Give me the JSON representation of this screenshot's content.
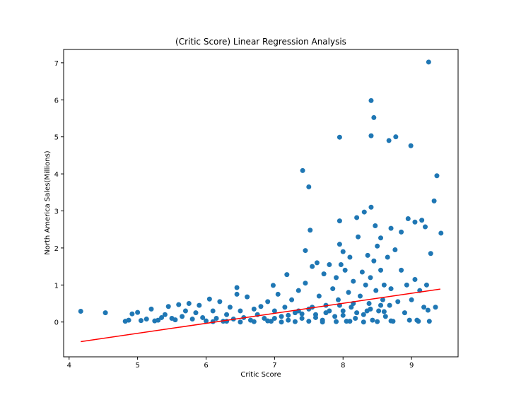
{
  "chart_data": {
    "type": "scatter",
    "title": "(Critic Score) Linear Regression Analysis",
    "x_label": "Critic Score",
    "y_label": "North America Sales(Millions)",
    "color": "#1f77b4",
    "x": [
      4.17,
      4.53,
      9.25,
      8.41,
      8.45,
      8.41,
      7.95,
      8.77,
      8.67,
      8.99,
      7.41,
      7.5,
      9.37,
      8.41,
      9.33,
      8.31,
      7.95,
      8.2,
      7.52,
      9.43,
      8.95,
      9.05,
      9.15,
      9.2,
      9.28,
      8.85,
      8.7,
      8.55,
      8.47,
      7.45,
      7.18,
      6.98,
      6.45,
      7.95,
      8.0,
      4.82,
      4.87,
      4.92,
      5.0,
      5.05,
      5.13,
      5.2,
      5.25,
      5.3,
      5.35,
      5.4,
      5.45,
      5.5,
      5.55,
      5.6,
      5.65,
      5.7,
      5.75,
      5.8,
      5.85,
      5.9,
      5.95,
      6.0,
      6.05,
      6.1,
      6.15,
      6.2,
      6.25,
      6.3,
      6.35,
      6.4,
      6.45,
      6.5,
      6.55,
      6.6,
      6.65,
      6.7,
      6.75,
      6.8,
      6.85,
      6.9,
      6.95,
      7.0,
      7.05,
      7.1,
      7.15,
      7.2,
      7.25,
      7.3,
      7.35,
      7.4,
      7.45,
      7.5,
      7.55,
      7.6,
      7.62,
      7.65,
      7.7,
      7.72,
      7.75,
      7.8,
      7.85,
      7.88,
      7.9,
      7.93,
      7.97,
      8.0,
      8.03,
      8.05,
      8.08,
      8.1,
      8.12,
      8.15,
      8.18,
      8.22,
      8.25,
      8.28,
      8.3,
      8.33,
      8.36,
      8.38,
      8.4,
      8.43,
      8.45,
      8.48,
      8.5,
      8.52,
      8.55,
      8.58,
      8.6,
      8.62,
      8.65,
      8.68,
      8.7,
      8.73,
      8.76,
      8.8,
      8.85,
      8.9,
      8.93,
      8.97,
      9.0,
      9.05,
      9.1,
      9.12,
      9.18,
      9.22,
      9.26,
      9.35,
      9.24,
      9.08,
      6.1,
      6.3,
      6.5,
      6.7,
      6.9,
      7.1,
      7.3,
      7.5,
      7.7,
      7.9,
      8.1,
      8.3,
      8.5,
      8.7,
      7.0,
      7.2,
      7.4,
      7.6,
      7.8,
      8.0,
      8.2,
      8.4,
      8.6,
      7.35,
      7.55,
      7.75,
      7.95,
      8.15,
      8.35,
      8.55
    ],
    "values": [
      0.29,
      0.25,
      7.02,
      5.98,
      5.52,
      5.03,
      4.99,
      5.0,
      4.9,
      4.76,
      4.09,
      3.65,
      3.95,
      3.1,
      3.27,
      2.97,
      2.73,
      2.82,
      2.48,
      2.4,
      2.79,
      2.7,
      2.75,
      2.57,
      1.85,
      2.43,
      2.53,
      2.27,
      2.6,
      1.93,
      1.28,
      0.99,
      0.93,
      2.1,
      1.9,
      0.02,
      0.05,
      0.22,
      0.26,
      0.04,
      0.08,
      0.35,
      0.03,
      0.05,
      0.12,
      0.2,
      0.42,
      0.1,
      0.06,
      0.47,
      0.15,
      0.3,
      0.5,
      0.08,
      0.25,
      0.45,
      0.12,
      0.03,
      0.62,
      0.3,
      0.1,
      0.55,
      0.02,
      0.2,
      0.4,
      0.08,
      0.75,
      0.3,
      0.12,
      0.68,
      0.05,
      0.35,
      0.2,
      0.42,
      0.1,
      0.55,
      0.02,
      0.3,
      0.75,
      0.15,
      0.4,
      0.05,
      0.6,
      0.25,
      0.85,
      0.1,
      1.05,
      0.35,
      1.5,
      0.2,
      1.6,
      0.7,
      0.05,
      1.3,
      0.45,
      1.55,
      0.9,
      0.15,
      1.2,
      0.6,
      1.55,
      0.3,
      1.4,
      0.02,
      0.8,
      1.75,
      0.4,
      1.1,
      0.1,
      2.3,
      0.7,
      1.35,
      0.2,
      1.0,
      1.8,
      0.5,
      1.2,
      0.05,
      1.65,
      0.85,
      2.05,
      0.3,
      1.4,
      0.6,
      1.0,
      0.15,
      1.75,
      0.45,
      0.9,
      0.02,
      1.95,
      0.55,
      1.4,
      0.25,
      1.0,
      0.05,
      0.6,
      1.15,
      0.02,
      0.85,
      0.4,
      1.0,
      0.02,
      0.4,
      0.32,
      0.05,
      0.01,
      0.02,
      0.0,
      0.01,
      0.03,
      0.0,
      0.01,
      0.02,
      0.0,
      0.01,
      0.02,
      0.0,
      0.01,
      0.03,
      0.1,
      0.18,
      0.22,
      0.12,
      0.3,
      0.18,
      0.25,
      0.35,
      0.28,
      0.3,
      0.4,
      0.25,
      0.45,
      0.5,
      0.3,
      0.45
    ],
    "regression": {
      "x": [
        4.17,
        9.42
      ],
      "values": [
        -0.53,
        0.89
      ],
      "color": "#ff0000"
    },
    "xlim": [
      3.92,
      9.68
    ],
    "ylim": [
      -0.94,
      7.36
    ],
    "xticks": [
      4,
      5,
      6,
      7,
      8,
      9
    ],
    "yticks": [
      0,
      1,
      2,
      3,
      4,
      5,
      6,
      7
    ]
  }
}
